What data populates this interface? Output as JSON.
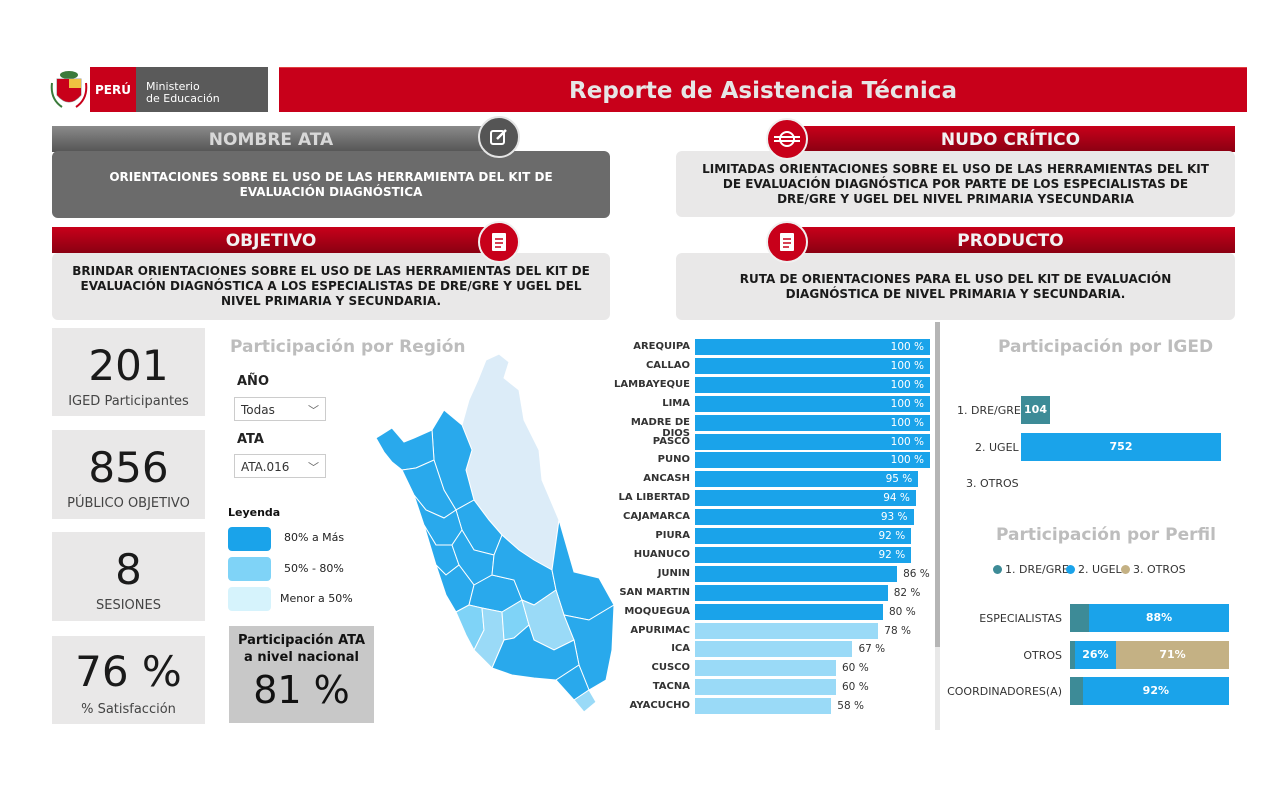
{
  "header": {
    "logo_country": "PERÚ",
    "logo_ministry_line1": "Ministerio",
    "logo_ministry_line2": "de Educación",
    "title": "Reporte de Asistencia Técnica"
  },
  "cards": {
    "nombre_ata": {
      "title": "NOMBRE ATA",
      "text": "ORIENTACIONES SOBRE EL USO DE LAS HERRAMIENTA DEL KIT DE EVALUACIÓN DIAGNÓSTICA",
      "icon": "edit-icon"
    },
    "nudo_critico": {
      "title": "NUDO CRÍTICO",
      "text": "LIMITADAS ORIENTACIONES SOBRE EL USO DE LAS HERRAMIENTAS DEL KIT DE EVALUACIÓN DIAGNÓSTICA POR PARTE DE LOS ESPECIALISTAS DE DRE/GRE Y UGEL DEL NIVEL PRIMARIA YSECUNDARIA",
      "icon": "knot-icon"
    },
    "objetivo": {
      "title": "OBJETIVO",
      "text": "BRINDAR ORIENTACIONES SOBRE EL USO DE LAS HERRAMIENTAS DEL KIT DE EVALUACIÓN DIAGNÓSTICA A LOS ESPECIALISTAS DE DRE/GRE Y UGEL DEL NIVEL PRIMARIA Y SECUNDARIA.",
      "icon": "document-icon"
    },
    "producto": {
      "title": "PRODUCTO",
      "text": "RUTA DE ORIENTACIONES PARA EL USO DEL KIT DE EVALUACIÓN DIAGNÓSTICA DE NIVEL PRIMARIA Y SECUNDARIA.",
      "icon": "document-icon"
    }
  },
  "kpis": [
    {
      "value": "201",
      "label": "IGED Participantes"
    },
    {
      "value": "856",
      "label": "PÚBLICO OBJETIVO"
    },
    {
      "value": "8",
      "label": "SESIONES"
    },
    {
      "value": "76 %",
      "label": "% Satisfacción"
    }
  ],
  "region": {
    "title": "Participación por Región",
    "filters": {
      "year_label": "AÑO",
      "year_value": "Todas",
      "ata_label": "ATA",
      "ata_value": "ATA.016"
    },
    "legend": {
      "title": "Leyenda",
      "items": [
        {
          "label": "80% a Más",
          "color": "#1aa3ea"
        },
        {
          "label": "50% - 80%",
          "color": "#7fd3f7"
        },
        {
          "label": "Menor a 50%",
          "color": "#d6f3fc"
        }
      ]
    },
    "national": {
      "label_line1": "Participación ATA",
      "label_line2": "a nivel nacional",
      "value": "81 %"
    }
  },
  "chart_data": [
    {
      "type": "bar",
      "orientation": "horizontal",
      "categories": [
        "AREQUIPA",
        "CALLAO",
        "LAMBAYEQUE",
        "LIMA",
        "MADRE DE DIOS",
        "PASCO",
        "PUNO",
        "ANCASH",
        "LA LIBERTAD",
        "CAJAMARCA",
        "PIURA",
        "HUANUCO",
        "JUNIN",
        "SAN MARTIN",
        "MOQUEGUA",
        "APURIMAC",
        "ICA",
        "CUSCO",
        "TACNA",
        "AYACUCHO"
      ],
      "values": [
        100,
        100,
        100,
        100,
        100,
        100,
        100,
        95,
        94,
        93,
        92,
        92,
        86,
        82,
        80,
        78,
        67,
        60,
        60,
        58
      ],
      "value_labels": [
        "100 %",
        "100 %",
        "100 %",
        "100 %",
        "100 %",
        "100 %",
        "100 %",
        "95 %",
        "94 %",
        "93 %",
        "92 %",
        "92 %",
        "86 %",
        "82 %",
        "80 %",
        "78 %",
        "67 %",
        "60 %",
        "60 %",
        "58 %"
      ],
      "xlim": [
        0,
        100
      ],
      "colors": {
        "high": "#1aa3ea",
        "mid": "#9adaf7"
      }
    },
    {
      "type": "bar",
      "orientation": "horizontal",
      "title": "Participación por IGED",
      "categories": [
        "1. DRE/GRE",
        "2. UGEL",
        "3. OTROS"
      ],
      "values": [
        104,
        752,
        0
      ],
      "value_labels": [
        "104",
        "752",
        ""
      ],
      "colors": [
        "#3d8b97",
        "#1aa3ea",
        "#1aa3ea"
      ]
    },
    {
      "type": "bar",
      "orientation": "horizontal",
      "stacked": true,
      "title": "Participación por Perfil",
      "categories": [
        "ESPECIALISTAS",
        "OTROS",
        "COORDINADORES(A)"
      ],
      "series": [
        {
          "name": "1. DRE/GRE",
          "values": [
            12,
            3,
            8
          ],
          "labels": [
            "",
            "",
            ""
          ],
          "color": "#3d8b97"
        },
        {
          "name": "2. UGEL",
          "values": [
            88,
            26,
            92
          ],
          "labels": [
            "88%",
            "26%",
            "92%"
          ],
          "color": "#1aa3ea"
        },
        {
          "name": "3. OTROS",
          "values": [
            0,
            71,
            0
          ],
          "labels": [
            "",
            "71%",
            ""
          ],
          "color": "#c4b184"
        }
      ],
      "xlim": [
        0,
        100
      ],
      "legend": "top"
    }
  ]
}
